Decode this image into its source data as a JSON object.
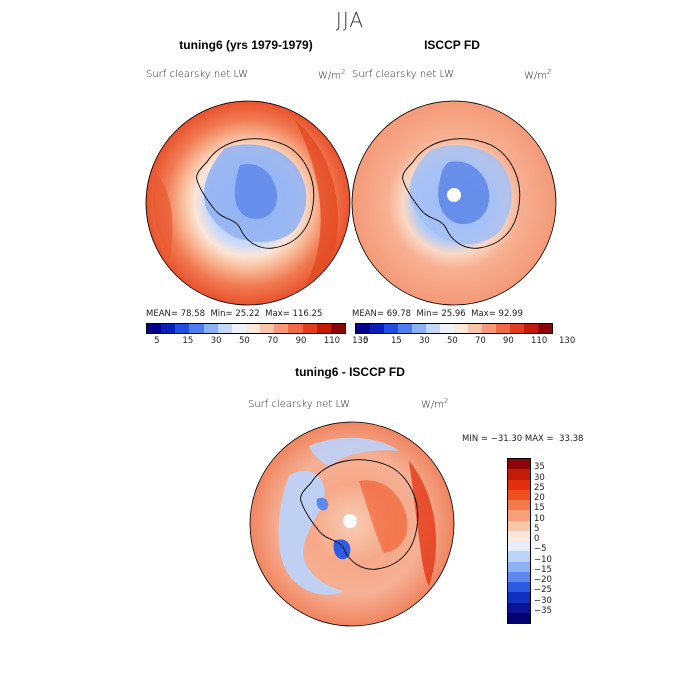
{
  "season_title": "JJA",
  "panels": [
    {
      "title": "tuning6 (yrs 1979-1979)",
      "variable": "Surf clearsky net LW",
      "units": "W/m",
      "units_exp": "2",
      "mean_label": "MEAN=",
      "mean": "78.58",
      "min_label": "Min=",
      "min": "25.22",
      "max_label": "Max=",
      "max": "116.25"
    },
    {
      "title": "ISCCP FD",
      "variable": "Surf clearsky net LW",
      "units": "W/m",
      "units_exp": "2",
      "mean_label": "MEAN=",
      "mean": "69.78",
      "min_label": "Min=",
      "min": "25.96",
      "max_label": "Max=",
      "max": "92.99"
    }
  ],
  "colorbar": {
    "tick_labels": [
      "5",
      "15",
      "30",
      "50",
      "70",
      "90",
      "110",
      "130"
    ],
    "colors": [
      "#00008a",
      "#0a1fb8",
      "#1f4ee0",
      "#4f7ef0",
      "#8cb0f6",
      "#c4d8fb",
      "#eef3fd",
      "#fde9dc",
      "#f9c4a8",
      "#f59a78",
      "#f06a45",
      "#e23d1e",
      "#c41a0a",
      "#8c0505"
    ]
  },
  "diff": {
    "title": "tuning6 - ISCCP FD",
    "variable": "Surf clearsky net LW",
    "units": "W/m",
    "units_exp": "2",
    "stats": "MIN = −31.30 MAX =  33.38",
    "legend_labels": [
      "35",
      "30",
      "25",
      "20",
      "15",
      "10",
      "5",
      "0",
      "−5",
      "−10",
      "−15",
      "−20",
      "−25",
      "−30",
      "−35"
    ],
    "legend_colors": [
      "#8c0505",
      "#c41a0a",
      "#e2300f",
      "#f0501f",
      "#f47a4c",
      "#f7a07a",
      "#fac7a8",
      "#fde9dc",
      "#e6eefc",
      "#bcd2f8",
      "#8fb2f4",
      "#5f88ee",
      "#2f5be4",
      "#1030c0",
      "#0a1496",
      "#000070"
    ]
  }
}
